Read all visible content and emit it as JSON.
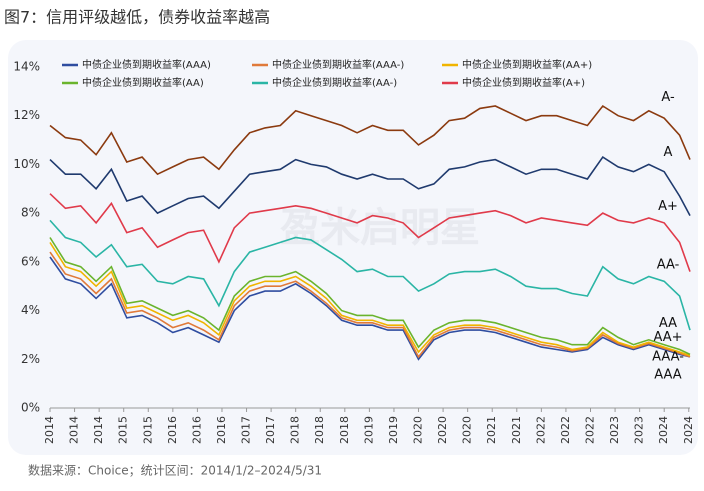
{
  "chart_data": {
    "type": "line",
    "title": "图7：信用评级越低，债券收益率越高",
    "source": "数据来源：Choice；统计区间：2014/1/2–2024/5/31",
    "watermark": "盈米启明星",
    "x": [
      2014,
      2014.25,
      2014.5,
      2014.75,
      2015,
      2015.25,
      2015.5,
      2015.75,
      2016,
      2016.25,
      2016.5,
      2016.75,
      2017,
      2017.25,
      2017.5,
      2017.75,
      2018,
      2018.25,
      2018.5,
      2018.75,
      2019,
      2019.25,
      2019.5,
      2019.75,
      2020,
      2020.25,
      2020.5,
      2020.75,
      2021,
      2021.25,
      2021.5,
      2021.75,
      2022,
      2022.25,
      2022.5,
      2022.75,
      2023,
      2023.25,
      2023.5,
      2023.75,
      2024,
      2024.25,
      2024.42
    ],
    "xlim": [
      2014,
      2024.42
    ],
    "xticks": [
      2014,
      {
        "value": 2014.4,
        "label": "2014"
      },
      {
        "value": 2014.8,
        "label": "2014"
      },
      {
        "value": 2015.2,
        "label": "2015"
      },
      {
        "value": 2015.6,
        "label": "2015"
      },
      2016,
      {
        "value": 2016.4,
        "label": "2016"
      },
      {
        "value": 2016.8,
        "label": "2016"
      },
      {
        "value": 2017.2,
        "label": "2017"
      },
      {
        "value": 2017.6,
        "label": "2017"
      },
      2018,
      {
        "value": 2018.4,
        "label": "2018"
      },
      {
        "value": 2018.8,
        "label": "2018"
      },
      {
        "value": 2019.2,
        "label": "2019"
      },
      {
        "value": 2019.6,
        "label": "2019"
      },
      2020,
      {
        "value": 2020.4,
        "label": "2020"
      },
      {
        "value": 2020.8,
        "label": "2020"
      },
      {
        "value": 2021.2,
        "label": "2021"
      },
      {
        "value": 2021.6,
        "label": "2021"
      },
      2022,
      {
        "value": 2022.4,
        "label": "2022"
      },
      {
        "value": 2022.8,
        "label": "2022"
      },
      {
        "value": 2023.2,
        "label": "2023"
      },
      {
        "value": 2023.6,
        "label": "2023"
      },
      2024,
      {
        "value": 2024.4,
        "label": "2024"
      }
    ],
    "ylim": [
      0,
      14
    ],
    "yticks": [
      {
        "value": 0,
        "label": "0%"
      },
      {
        "value": 2,
        "label": "2%"
      },
      {
        "value": 4,
        "label": "4%"
      },
      {
        "value": 6,
        "label": "6%"
      },
      {
        "value": 8,
        "label": "8%"
      },
      {
        "value": 10,
        "label": "10%"
      },
      {
        "value": 12,
        "label": "12%"
      },
      {
        "value": 14,
        "label": "14%"
      }
    ],
    "series": [
      {
        "name": "中债企业债到期收益率(AAA)",
        "label": "AAA",
        "color": "#2f4da0",
        "values": [
          6.2,
          5.3,
          5.1,
          4.5,
          5.1,
          3.7,
          3.8,
          3.5,
          3.1,
          3.3,
          3.0,
          2.7,
          4.0,
          4.6,
          4.8,
          4.8,
          5.1,
          4.7,
          4.2,
          3.6,
          3.4,
          3.4,
          3.2,
          3.2,
          2.0,
          2.8,
          3.1,
          3.2,
          3.2,
          3.1,
          2.9,
          2.7,
          2.5,
          2.4,
          2.3,
          2.4,
          2.9,
          2.6,
          2.4,
          2.6,
          2.4,
          2.2,
          2.1
        ]
      },
      {
        "name": "中债企业债到期收益率(AAA-)",
        "label": "AAA-",
        "color": "#e07a3a",
        "values": [
          6.4,
          5.5,
          5.3,
          4.7,
          5.3,
          3.9,
          4.0,
          3.7,
          3.3,
          3.5,
          3.2,
          2.8,
          4.2,
          4.8,
          5.0,
          5.0,
          5.2,
          4.8,
          4.3,
          3.7,
          3.5,
          3.5,
          3.3,
          3.3,
          2.1,
          2.9,
          3.2,
          3.3,
          3.3,
          3.2,
          3.0,
          2.8,
          2.6,
          2.5,
          2.35,
          2.45,
          3.0,
          2.65,
          2.45,
          2.65,
          2.45,
          2.25,
          2.1
        ]
      },
      {
        "name": "中债企业债到期收益率(AA+)",
        "label": "AA+",
        "color": "#f0b400",
        "values": [
          6.8,
          5.8,
          5.6,
          5.0,
          5.6,
          4.1,
          4.2,
          3.9,
          3.6,
          3.8,
          3.5,
          3.0,
          4.4,
          5.0,
          5.2,
          5.2,
          5.4,
          5.0,
          4.5,
          3.8,
          3.6,
          3.6,
          3.4,
          3.4,
          2.3,
          3.0,
          3.3,
          3.4,
          3.4,
          3.3,
          3.1,
          2.9,
          2.7,
          2.6,
          2.4,
          2.5,
          3.1,
          2.7,
          2.5,
          2.7,
          2.5,
          2.3,
          2.15
        ]
      },
      {
        "name": "中债企业债到期收益率(AA)",
        "label": "AA",
        "color": "#6ab42d",
        "values": [
          7.0,
          6.0,
          5.8,
          5.2,
          5.8,
          4.3,
          4.4,
          4.1,
          3.8,
          4.0,
          3.7,
          3.2,
          4.6,
          5.2,
          5.4,
          5.4,
          5.6,
          5.2,
          4.7,
          4.0,
          3.8,
          3.8,
          3.6,
          3.6,
          2.5,
          3.2,
          3.5,
          3.6,
          3.6,
          3.5,
          3.3,
          3.1,
          2.9,
          2.8,
          2.6,
          2.6,
          3.3,
          2.9,
          2.6,
          2.8,
          2.6,
          2.4,
          2.2
        ]
      },
      {
        "name": "中债企业债到期收益率(AA-)",
        "label": "AA-",
        "color": "#2ab5a5",
        "values": [
          7.7,
          7.0,
          6.8,
          6.2,
          6.7,
          5.8,
          5.9,
          5.2,
          5.1,
          5.4,
          5.3,
          4.2,
          5.6,
          6.4,
          6.6,
          6.8,
          7.0,
          6.9,
          6.5,
          6.1,
          5.6,
          5.7,
          5.4,
          5.4,
          4.8,
          5.1,
          5.5,
          5.6,
          5.6,
          5.7,
          5.4,
          5.0,
          4.9,
          4.9,
          4.7,
          4.6,
          5.8,
          5.3,
          5.1,
          5.4,
          5.2,
          4.6,
          3.2
        ]
      },
      {
        "name": "中债企业债到期收益率(A+)",
        "label": "A+",
        "color": "#e03a4a",
        "values": [
          8.8,
          8.2,
          8.3,
          7.6,
          8.4,
          7.2,
          7.4,
          6.6,
          6.9,
          7.2,
          7.3,
          6.0,
          7.4,
          8.0,
          8.1,
          8.2,
          8.3,
          8.2,
          8.0,
          7.8,
          7.6,
          7.9,
          7.8,
          7.6,
          7.0,
          7.4,
          7.8,
          7.9,
          8.0,
          8.1,
          7.9,
          7.6,
          7.8,
          7.7,
          7.6,
          7.5,
          8.0,
          7.7,
          7.6,
          7.8,
          7.6,
          6.8,
          5.6
        ]
      },
      {
        "label": "A",
        "color": "#1f3a6e",
        "values": [
          10.2,
          9.6,
          9.6,
          9.0,
          9.8,
          8.5,
          8.7,
          8.0,
          8.3,
          8.6,
          8.7,
          8.2,
          8.9,
          9.6,
          9.7,
          9.8,
          10.2,
          10.0,
          9.9,
          9.6,
          9.4,
          9.6,
          9.4,
          9.4,
          9.0,
          9.2,
          9.8,
          9.9,
          10.1,
          10.2,
          9.9,
          9.6,
          9.8,
          9.8,
          9.6,
          9.4,
          10.3,
          9.9,
          9.7,
          10.0,
          9.7,
          8.7,
          7.9
        ]
      },
      {
        "label": "A-",
        "color": "#8b3a0f",
        "values": [
          11.6,
          11.1,
          11.0,
          10.4,
          11.3,
          10.1,
          10.3,
          9.6,
          9.9,
          10.2,
          10.3,
          9.8,
          10.6,
          11.3,
          11.5,
          11.6,
          12.2,
          12.0,
          11.8,
          11.6,
          11.3,
          11.6,
          11.4,
          11.4,
          10.8,
          11.2,
          11.8,
          11.9,
          12.3,
          12.4,
          12.1,
          11.8,
          12.0,
          12.0,
          11.8,
          11.6,
          12.4,
          12.0,
          11.8,
          12.2,
          11.9,
          11.2,
          10.2
        ]
      }
    ]
  }
}
